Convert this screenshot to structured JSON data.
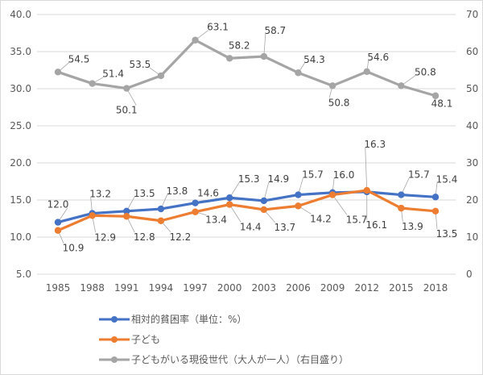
{
  "chart_data": {
    "type": "line",
    "categories": [
      "1985",
      "1988",
      "1991",
      "1994",
      "1997",
      "2000",
      "2003",
      "2006",
      "2009",
      "2012",
      "2015",
      "2018"
    ],
    "y_left": {
      "range": [
        5.0,
        40.0
      ],
      "ticks": [
        "5.0",
        "10.0",
        "15.0",
        "20.0",
        "25.0",
        "30.0",
        "35.0",
        "40.0"
      ]
    },
    "y_right": {
      "range": [
        0,
        70
      ],
      "ticks": [
        "0",
        "10",
        "20",
        "30",
        "40",
        "50",
        "60",
        "70"
      ]
    },
    "grid": true,
    "legend_position": "bottom",
    "series": [
      {
        "name": "相対的貧困率（単位：%）",
        "axis": "left",
        "color": "#4472c4",
        "values": [
          12.0,
          13.2,
          13.5,
          13.8,
          14.6,
          15.3,
          14.9,
          15.7,
          16.0,
          16.1,
          15.7,
          15.4
        ],
        "labels": [
          "12.0",
          "13.2",
          "13.5",
          "13.8",
          "14.6",
          "15.3",
          "14.9",
          "15.7",
          "16.0",
          "16.1",
          "15.7",
          "15.4"
        ]
      },
      {
        "name": "子ども",
        "axis": "left",
        "color": "#ed7d31",
        "values": [
          10.9,
          12.9,
          12.8,
          12.2,
          13.4,
          14.4,
          13.7,
          14.2,
          15.7,
          16.3,
          13.9,
          13.5
        ],
        "labels": [
          "10.9",
          "12.9",
          "12.8",
          "12.2",
          "13.4",
          "14.4",
          "13.7",
          "14.2",
          "15.7",
          "16.3",
          "13.9",
          "13.5"
        ]
      },
      {
        "name": "子どもがいる現役世代（大人が一人）（右目盛り）",
        "axis": "right",
        "color": "#a5a5a5",
        "values": [
          54.5,
          51.4,
          50.1,
          53.5,
          63.1,
          58.2,
          58.7,
          54.3,
          50.8,
          54.6,
          50.8,
          48.1
        ],
        "labels": [
          "54.5",
          "51.4",
          "50.1",
          "53.5",
          "63.1",
          "58.2",
          "58.7",
          "54.3",
          "50.8",
          "54.6",
          "50.8",
          "48.1"
        ]
      }
    ]
  }
}
